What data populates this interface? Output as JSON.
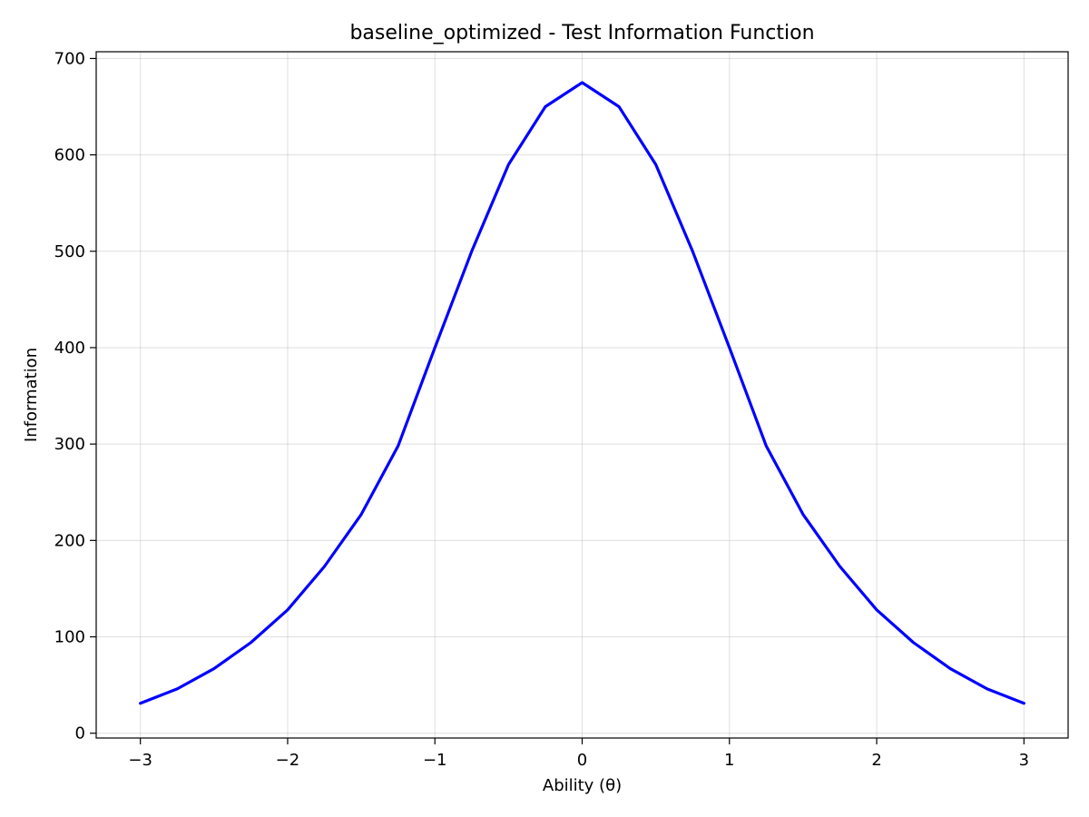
{
  "chart_data": {
    "type": "line",
    "title": "baseline_optimized - Test Information Function",
    "xlabel": "Ability (θ)",
    "ylabel": "Information",
    "xlim": [
      -3.3,
      3.3
    ],
    "ylim": [
      -5,
      707
    ],
    "grid": true,
    "x_ticks": [
      -3,
      -2,
      -1,
      0,
      1,
      2,
      3
    ],
    "x_tick_labels": [
      "−3",
      "−2",
      "−1",
      "0",
      "1",
      "2",
      "3"
    ],
    "y_ticks": [
      0,
      100,
      200,
      300,
      400,
      500,
      600,
      700
    ],
    "y_tick_labels": [
      "0",
      "100",
      "200",
      "300",
      "400",
      "500",
      "600",
      "700"
    ],
    "series": [
      {
        "color": "#0000ff",
        "x": [
          -3.0,
          -2.75,
          -2.5,
          -2.25,
          -2.0,
          -1.75,
          -1.5,
          -1.25,
          -1.0,
          -0.75,
          -0.5,
          -0.25,
          0.0,
          0.25,
          0.5,
          0.75,
          1.0,
          1.25,
          1.5,
          1.75,
          2.0,
          2.25,
          2.5,
          2.75,
          3.0
        ],
        "y": [
          31,
          46,
          67,
          94,
          128,
          173,
          227,
          298,
          400,
          500,
          590,
          650,
          675,
          650,
          590,
          500,
          400,
          298,
          227,
          173,
          128,
          94,
          67,
          46,
          31
        ]
      }
    ]
  }
}
